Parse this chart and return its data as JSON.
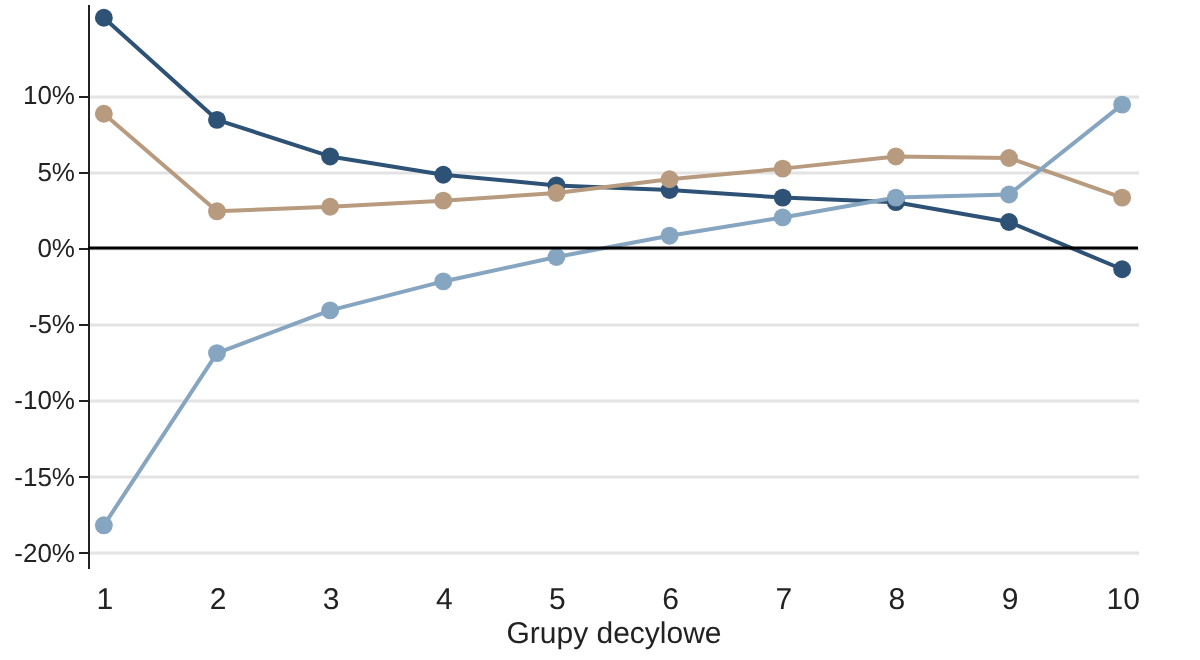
{
  "chart_data": {
    "type": "line",
    "xlabel": "Grupy decylowe",
    "categories": [
      "1",
      "2",
      "3",
      "4",
      "5",
      "6",
      "7",
      "8",
      "9",
      "10"
    ],
    "series": [
      {
        "color": "#2e5275",
        "values": [
          15.1,
          8.4,
          6.0,
          4.8,
          4.1,
          3.8,
          3.3,
          3.0,
          1.7,
          -1.4
        ]
      },
      {
        "color": "#b89b7e",
        "values": [
          8.8,
          2.4,
          2.7,
          3.1,
          3.6,
          4.5,
          5.2,
          6.0,
          5.9,
          3.3
        ]
      },
      {
        "color": "#86a5c0",
        "values": [
          -18.2,
          -6.9,
          -4.1,
          -2.2,
          -0.6,
          0.8,
          2.0,
          3.3,
          3.5,
          9.4
        ]
      }
    ],
    "ylim": [
      -21,
      16
    ],
    "yticks": [
      {
        "value": -20,
        "label": "-20%"
      },
      {
        "value": -15,
        "label": "-15%"
      },
      {
        "value": -10,
        "label": "-10%"
      },
      {
        "value": -5,
        "label": "-5%"
      },
      {
        "value": 0,
        "label": "0%"
      },
      {
        "value": 5,
        "label": "5%"
      },
      {
        "value": 10,
        "label": "10%"
      }
    ],
    "ref_lines": [
      {
        "axis": "y",
        "value": 0,
        "color": "#000000"
      }
    ],
    "grid": "y",
    "marker": "circle",
    "legend": false
  }
}
